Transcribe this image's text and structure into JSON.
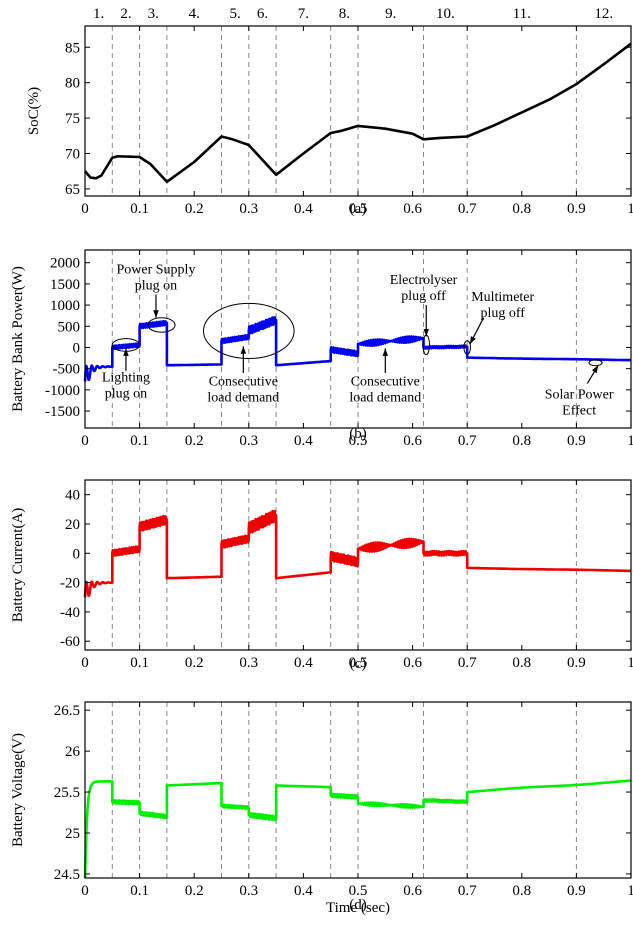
{
  "chart_data": [
    {
      "id": "a",
      "type": "line",
      "caption": "(a)",
      "ylabel": "SoC(%)",
      "xlabel": "",
      "xlim": [
        0,
        1
      ],
      "ylim": [
        64,
        88
      ],
      "x_ticks": [
        0,
        0.1,
        0.2,
        0.3,
        0.4,
        0.5,
        0.6,
        0.7,
        0.8,
        0.9,
        1
      ],
      "y_ticks": [
        65,
        70,
        75,
        80,
        85
      ],
      "interval_boundaries": [
        0.05,
        0.1,
        0.15,
        0.25,
        0.3,
        0.35,
        0.45,
        0.5,
        0.62,
        0.7,
        0.9
      ],
      "interval_labels": [
        "1.",
        "2.",
        "3.",
        "4.",
        "5.",
        "6.",
        "7.",
        "8.",
        "9.",
        "10.",
        "11.",
        "12."
      ],
      "series": [
        {
          "color": "#000000",
          "points": [
            [
              0,
              67.5
            ],
            [
              0.01,
              66.6
            ],
            [
              0.02,
              66.5
            ],
            [
              0.03,
              66.9
            ],
            [
              0.05,
              69.4
            ],
            [
              0.06,
              69.6
            ],
            [
              0.1,
              69.5
            ],
            [
              0.12,
              68.5
            ],
            [
              0.15,
              66.0
            ],
            [
              0.2,
              68.8
            ],
            [
              0.25,
              72.4
            ],
            [
              0.27,
              72.0
            ],
            [
              0.3,
              71.2
            ],
            [
              0.35,
              67.0
            ],
            [
              0.4,
              70.0
            ],
            [
              0.45,
              72.9
            ],
            [
              0.47,
              73.2
            ],
            [
              0.5,
              73.9
            ],
            [
              0.55,
              73.5
            ],
            [
              0.6,
              72.8
            ],
            [
              0.62,
              72.0
            ],
            [
              0.65,
              72.2
            ],
            [
              0.7,
              72.4
            ],
            [
              0.75,
              74.0
            ],
            [
              0.8,
              75.8
            ],
            [
              0.85,
              77.6
            ],
            [
              0.9,
              79.8
            ],
            [
              0.95,
              82.6
            ],
            [
              1.0,
              85.5
            ]
          ]
        }
      ]
    },
    {
      "id": "b",
      "type": "line",
      "caption": "(b)",
      "ylabel": "Battery Bank Power(W)",
      "xlabel": "",
      "xlim": [
        0,
        1
      ],
      "ylim": [
        -1900,
        2300
      ],
      "x_ticks": [
        0,
        0.1,
        0.2,
        0.3,
        0.4,
        0.5,
        0.6,
        0.7,
        0.8,
        0.9,
        1
      ],
      "y_ticks": [
        2000,
        1500,
        1000,
        500,
        0,
        -500,
        -1000,
        -1500
      ],
      "series": [
        {
          "color": "#0000ee",
          "segments": [
            {
              "t0": 0.0,
              "t1": 0.05,
              "kind": "decay",
              "start": -800,
              "end": -450,
              "osc": 350
            },
            {
              "t0": 0.05,
              "t1": 0.1,
              "kind": "ripple",
              "start": 0,
              "end": 60,
              "osc": 40
            },
            {
              "t0": 0.1,
              "t1": 0.15,
              "kind": "ripple",
              "start": 500,
              "end": 580,
              "osc": 50
            },
            {
              "t0": 0.15,
              "t1": 0.25,
              "kind": "flat",
              "start": -420,
              "end": -400,
              "osc": 0
            },
            {
              "t0": 0.25,
              "t1": 0.3,
              "kind": "ripple",
              "start": 150,
              "end": 250,
              "osc": 50
            },
            {
              "t0": 0.3,
              "t1": 0.35,
              "kind": "ripple",
              "start": 400,
              "end": 650,
              "osc": 90
            },
            {
              "t0": 0.35,
              "t1": 0.45,
              "kind": "flat",
              "start": -420,
              "end": -320,
              "osc": 0
            },
            {
              "t0": 0.45,
              "t1": 0.5,
              "kind": "ripple",
              "start": -50,
              "end": -150,
              "osc": 60
            },
            {
              "t0": 0.5,
              "t1": 0.62,
              "kind": "ripple",
              "start": 80,
              "end": 220,
              "osc": 70
            },
            {
              "t0": 0.62,
              "t1": 0.7,
              "kind": "ripple",
              "start": 0,
              "end": 20,
              "osc": 25
            },
            {
              "t0": 0.7,
              "t1": 1.0,
              "kind": "smooth",
              "start": -240,
              "end": -300,
              "osc": 0
            }
          ]
        }
      ],
      "annotations": [
        {
          "text": "Power Supply",
          "line2": "plug on",
          "x": 0.13,
          "y": 1750
        },
        {
          "text": "Lighting",
          "line2": "plug on",
          "x": 0.075,
          "y": -800
        },
        {
          "text": "Consecutive",
          "line2": "load demand",
          "x": 0.29,
          "y": -900
        },
        {
          "text": "Consecutive",
          "line2": "load demand",
          "x": 0.55,
          "y": -900
        },
        {
          "text": "Electrolyser",
          "line2": "plug off",
          "x": 0.62,
          "y": 1500
        },
        {
          "text": "Multimeter",
          "line2": "plug off",
          "x": 0.765,
          "y": 1100
        },
        {
          "text": "Solar Power",
          "line2": "Effect",
          "x": 0.905,
          "y": -1200
        }
      ]
    },
    {
      "id": "c",
      "type": "line",
      "caption": "(c)",
      "ylabel": "Battery Current(A)",
      "xlabel": "",
      "xlim": [
        0,
        1
      ],
      "ylim": [
        -66,
        50
      ],
      "x_ticks": [
        0,
        0.1,
        0.2,
        0.3,
        0.4,
        0.5,
        0.6,
        0.7,
        0.8,
        0.9,
        1
      ],
      "y_ticks": [
        40,
        20,
        0,
        -20,
        -40,
        -60
      ],
      "series": [
        {
          "color": "#ee0000",
          "segments": [
            {
              "t0": 0.0,
              "t1": 0.05,
              "kind": "decay",
              "start": -30,
              "end": -20,
              "osc": 10
            },
            {
              "t0": 0.05,
              "t1": 0.1,
              "kind": "ripple",
              "start": 0,
              "end": 3,
              "osc": 2
            },
            {
              "t0": 0.1,
              "t1": 0.15,
              "kind": "ripple",
              "start": 18,
              "end": 23,
              "osc": 3
            },
            {
              "t0": 0.15,
              "t1": 0.25,
              "kind": "flat",
              "start": -17,
              "end": -16,
              "osc": 0
            },
            {
              "t0": 0.25,
              "t1": 0.3,
              "kind": "ripple",
              "start": 6,
              "end": 10,
              "osc": 2.5
            },
            {
              "t0": 0.3,
              "t1": 0.35,
              "kind": "ripple",
              "start": 17,
              "end": 26,
              "osc": 4
            },
            {
              "t0": 0.35,
              "t1": 0.45,
              "kind": "flat",
              "start": -17,
              "end": -13,
              "osc": 0
            },
            {
              "t0": 0.45,
              "t1": 0.5,
              "kind": "ripple",
              "start": -2,
              "end": -6,
              "osc": 3
            },
            {
              "t0": 0.5,
              "t1": 0.62,
              "kind": "ripple",
              "start": 3,
              "end": 8,
              "osc": 3
            },
            {
              "t0": 0.62,
              "t1": 0.7,
              "kind": "ripple",
              "start": 0,
              "end": 0,
              "osc": 1.5
            },
            {
              "t0": 0.7,
              "t1": 1.0,
              "kind": "smooth",
              "start": -10,
              "end": -12,
              "osc": 0
            }
          ]
        }
      ]
    },
    {
      "id": "d",
      "type": "line",
      "caption": "(d)",
      "ylabel": "Battery Voltage(V)",
      "xlabel": "Time (sec)",
      "xlim": [
        0,
        1
      ],
      "ylim": [
        24.45,
        26.6
      ],
      "x_ticks": [
        0,
        0.1,
        0.2,
        0.3,
        0.4,
        0.5,
        0.6,
        0.7,
        0.8,
        0.9,
        1
      ],
      "y_ticks": [
        26.5,
        26,
        25.5,
        25,
        24.5
      ],
      "series": [
        {
          "color": "#00ee00",
          "segments": [
            {
              "t0": 0.0,
              "t1": 0.05,
              "kind": "rise",
              "start": 24.4,
              "end": 25.63,
              "osc": 0
            },
            {
              "t0": 0.05,
              "t1": 0.1,
              "kind": "ripple",
              "start": 25.38,
              "end": 25.37,
              "osc": 0.02
            },
            {
              "t0": 0.1,
              "t1": 0.15,
              "kind": "ripple",
              "start": 25.24,
              "end": 25.2,
              "osc": 0.02
            },
            {
              "t0": 0.15,
              "t1": 0.25,
              "kind": "flat",
              "start": 25.58,
              "end": 25.61,
              "osc": 0
            },
            {
              "t0": 0.25,
              "t1": 0.3,
              "kind": "ripple",
              "start": 25.33,
              "end": 25.31,
              "osc": 0.015
            },
            {
              "t0": 0.3,
              "t1": 0.35,
              "kind": "ripple",
              "start": 25.22,
              "end": 25.18,
              "osc": 0.025
            },
            {
              "t0": 0.35,
              "t1": 0.45,
              "kind": "flat",
              "start": 25.58,
              "end": 25.56,
              "osc": 0
            },
            {
              "t0": 0.45,
              "t1": 0.5,
              "kind": "ripple",
              "start": 25.46,
              "end": 25.44,
              "osc": 0.02
            },
            {
              "t0": 0.5,
              "t1": 0.62,
              "kind": "ripple",
              "start": 25.36,
              "end": 25.32,
              "osc": 0.02
            },
            {
              "t0": 0.62,
              "t1": 0.7,
              "kind": "ripple",
              "start": 25.4,
              "end": 25.38,
              "osc": 0.015
            },
            {
              "t0": 0.7,
              "t1": 1.0,
              "kind": "smooth",
              "start": 25.5,
              "end": 25.64,
              "osc": 0
            }
          ]
        }
      ]
    }
  ]
}
